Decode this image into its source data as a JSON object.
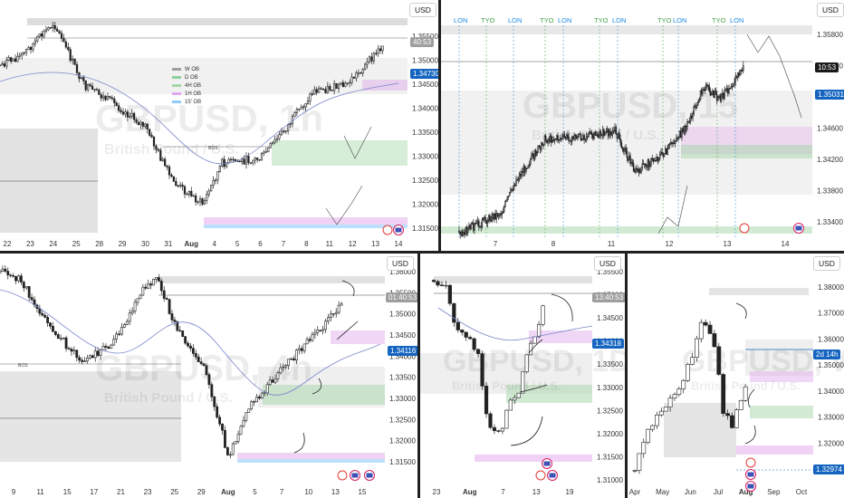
{
  "currency": "USD",
  "symbol_watermark": "GBPUSD",
  "symbol_subtitle": "British Pound / U.S.",
  "panes": {
    "p1": {
      "timeframe": "1h",
      "price_ticks": [
        "1.35500",
        "1.35000",
        "1.34500",
        "1.34000",
        "1.33500",
        "1.33000",
        "1.32500",
        "1.32000",
        "1.31500"
      ],
      "date_ticks": [
        "22",
        "23",
        "24",
        "25",
        "28",
        "29",
        "30",
        "31",
        "Aug",
        "4",
        "5",
        "6",
        "7",
        "8",
        "11",
        "12",
        "13",
        "14"
      ],
      "countdown_tag": "40:53",
      "price_tag": "1.34730",
      "bos_label": "BOS",
      "legend": [
        {
          "label": "W OB",
          "color": "#9e9e9e"
        },
        {
          "label": "D OB",
          "color": "#8fd19e"
        },
        {
          "label": "4H OB",
          "color": "#a5d6a7"
        },
        {
          "label": "1H OB",
          "color": "#e1a6ec"
        },
        {
          "label": "15' OB",
          "color": "#90caf9"
        }
      ]
    },
    "p2": {
      "timeframe": "15",
      "price_ticks": [
        "1.35800",
        "1.35400",
        "1.35000",
        "1.34600",
        "1.34200",
        "1.33800",
        "1.33400"
      ],
      "date_ticks": [
        "7",
        "8",
        "11",
        "12",
        "13",
        "14"
      ],
      "sessions": [
        "LON",
        "TYO",
        "LON",
        "TYO",
        "LON",
        "TYO",
        "LON",
        "TYO",
        "LON",
        "TYO",
        "LON"
      ],
      "countdown_tag": "10:53",
      "price_tag": "1.35031"
    },
    "p3": {
      "timeframe": "4h",
      "price_ticks": [
        "1.36000",
        "1.35500",
        "1.35000",
        "1.34500",
        "1.34000",
        "1.33500",
        "1.33000",
        "1.32500",
        "1.32000",
        "1.31500"
      ],
      "date_ticks": [
        "9",
        "11",
        "15",
        "17",
        "21",
        "23",
        "25",
        "29",
        "Aug",
        "5",
        "7",
        "10",
        "13",
        "15"
      ],
      "countdown_tag": "01:40:53",
      "price_tag": "1.34116",
      "bos_label": "BOS"
    },
    "p4": {
      "timeframe": "1D",
      "price_ticks": [
        "1.35500",
        "1.35000",
        "1.34500",
        "1.34000",
        "1.33500",
        "1.33000",
        "1.32500",
        "1.32000",
        "1.31500",
        "1.31000"
      ],
      "date_ticks": [
        "23",
        "Aug",
        "7",
        "13",
        "19"
      ],
      "countdown_tag": "13:40:53",
      "price_tag": "1.34318"
    },
    "p5": {
      "timeframe": "W",
      "price_ticks": [
        "1.38000",
        "1.37000",
        "1.36000",
        "1.35000",
        "1.34000",
        "1.33000",
        "1.32000",
        "1.31000"
      ],
      "date_ticks": [
        "Apr",
        "May",
        "Jun",
        "Jul",
        "Aug",
        "Sep",
        "Oct"
      ],
      "countdown_tag": "2d 14h",
      "price_tag": "1.32974"
    }
  }
}
